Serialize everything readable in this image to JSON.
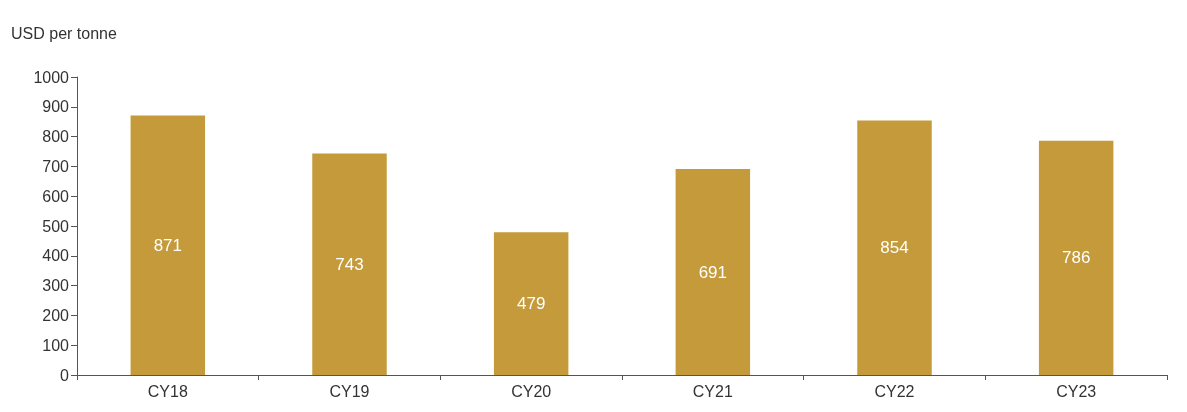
{
  "chart_data": {
    "type": "bar",
    "ylabel": "USD per tonne",
    "categories": [
      "CY18",
      "CY19",
      "CY20",
      "CY21",
      "CY22",
      "CY23"
    ],
    "values": [
      871,
      743,
      479,
      691,
      854,
      786
    ],
    "color": "#c49a3a",
    "ylim": [
      0,
      1000
    ],
    "yticks": [
      0,
      100,
      200,
      300,
      400,
      500,
      600,
      700,
      800,
      900,
      1000
    ],
    "grid": false,
    "data_labels": true
  }
}
